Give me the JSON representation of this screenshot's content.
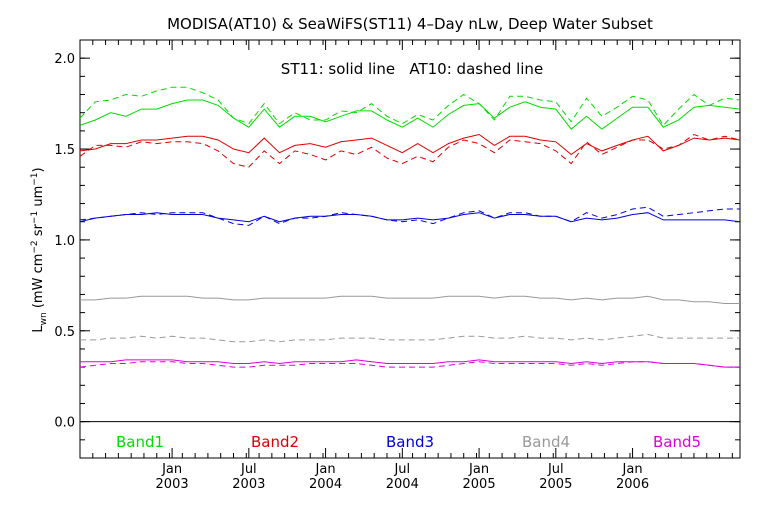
{
  "chart_data": {
    "type": "line",
    "title": "MODISA(AT10) & SeaWiFS(ST11) 4–Day nLw, Deep Water Subset",
    "annotation": "ST11: solid line   AT10: dashed line",
    "ylabel": {
      "main": "L",
      "sub1": "wn",
      "rest": " (mW cm",
      "sup1": "−2",
      "rest2": " sr",
      "sup2": "−1",
      "rest3": " um",
      "sup3": "−1",
      "end": ")"
    },
    "ylim": [
      -0.2,
      2.1
    ],
    "xlim": [
      2002.4,
      2006.7
    ],
    "yticks": [
      "0.0",
      "0.5",
      "1.0",
      "1.5",
      "2.0"
    ],
    "ytick_values": [
      0.0,
      0.5,
      1.0,
      1.5,
      2.0
    ],
    "xticks": [
      {
        "month": "Jan",
        "year": "2003",
        "value": 2003.0
      },
      {
        "month": "Jul",
        "year": "2003",
        "value": 2003.5
      },
      {
        "month": "Jan",
        "year": "2004",
        "value": 2004.0
      },
      {
        "month": "Jul",
        "year": "2004",
        "value": 2004.5
      },
      {
        "month": "Jan",
        "year": "2005",
        "value": 2005.0
      },
      {
        "month": "Jul",
        "year": "2005",
        "value": 2005.5
      },
      {
        "month": "Jan",
        "year": "2006",
        "value": 2006.0
      }
    ],
    "x": [
      2002.4,
      2002.5,
      2002.6,
      2002.7,
      2002.8,
      2002.9,
      2003.0,
      2003.1,
      2003.2,
      2003.3,
      2003.4,
      2003.5,
      2003.6,
      2003.7,
      2003.8,
      2003.9,
      2004.0,
      2004.1,
      2004.2,
      2004.3,
      2004.4,
      2004.5,
      2004.6,
      2004.7,
      2004.8,
      2004.9,
      2005.0,
      2005.1,
      2005.2,
      2005.3,
      2005.4,
      2005.5,
      2005.6,
      2005.7,
      2005.8,
      2005.9,
      2006.0,
      2006.1,
      2006.2,
      2006.3,
      2006.4,
      2006.5,
      2006.6,
      2006.7
    ],
    "series": [
      {
        "name": "Band1",
        "style": "solid",
        "color": "#00dd00",
        "values": [
          1.63,
          1.66,
          1.7,
          1.68,
          1.72,
          1.72,
          1.75,
          1.77,
          1.77,
          1.74,
          1.67,
          1.62,
          1.72,
          1.62,
          1.68,
          1.68,
          1.65,
          1.68,
          1.71,
          1.71,
          1.66,
          1.62,
          1.67,
          1.62,
          1.69,
          1.74,
          1.75,
          1.67,
          1.73,
          1.76,
          1.73,
          1.72,
          1.61,
          1.68,
          1.61,
          1.67,
          1.73,
          1.73,
          1.62,
          1.66,
          1.73,
          1.74,
          1.73,
          1.72
        ]
      },
      {
        "name": "Band1",
        "style": "dashed",
        "color": "#00dd00",
        "values": [
          1.67,
          1.76,
          1.77,
          1.8,
          1.79,
          1.82,
          1.84,
          1.84,
          1.81,
          1.77,
          1.67,
          1.64,
          1.75,
          1.64,
          1.7,
          1.66,
          1.66,
          1.71,
          1.7,
          1.75,
          1.68,
          1.64,
          1.69,
          1.66,
          1.74,
          1.8,
          1.75,
          1.66,
          1.79,
          1.79,
          1.77,
          1.76,
          1.65,
          1.78,
          1.68,
          1.73,
          1.79,
          1.77,
          1.63,
          1.72,
          1.8,
          1.74,
          1.78,
          1.77
        ]
      },
      {
        "name": "Band2",
        "style": "solid",
        "color": "#dd0000",
        "values": [
          1.49,
          1.5,
          1.53,
          1.53,
          1.55,
          1.55,
          1.56,
          1.57,
          1.57,
          1.55,
          1.5,
          1.48,
          1.56,
          1.48,
          1.52,
          1.53,
          1.51,
          1.54,
          1.55,
          1.56,
          1.52,
          1.48,
          1.53,
          1.48,
          1.53,
          1.56,
          1.58,
          1.52,
          1.57,
          1.57,
          1.55,
          1.54,
          1.47,
          1.53,
          1.49,
          1.52,
          1.55,
          1.57,
          1.49,
          1.52,
          1.56,
          1.55,
          1.56,
          1.55
        ]
      },
      {
        "name": "Band2",
        "style": "dashed",
        "color": "#dd0000",
        "values": [
          1.46,
          1.52,
          1.52,
          1.51,
          1.54,
          1.53,
          1.54,
          1.54,
          1.53,
          1.49,
          1.42,
          1.4,
          1.49,
          1.42,
          1.49,
          1.47,
          1.44,
          1.49,
          1.47,
          1.51,
          1.45,
          1.42,
          1.46,
          1.43,
          1.51,
          1.55,
          1.53,
          1.48,
          1.55,
          1.54,
          1.53,
          1.49,
          1.42,
          1.54,
          1.47,
          1.51,
          1.55,
          1.55,
          1.5,
          1.52,
          1.58,
          1.55,
          1.57,
          1.55
        ]
      },
      {
        "name": "Band3",
        "style": "solid",
        "color": "#0000dd",
        "values": [
          1.1,
          1.12,
          1.13,
          1.14,
          1.14,
          1.15,
          1.14,
          1.14,
          1.14,
          1.12,
          1.11,
          1.1,
          1.13,
          1.1,
          1.12,
          1.13,
          1.13,
          1.14,
          1.14,
          1.13,
          1.11,
          1.11,
          1.12,
          1.11,
          1.12,
          1.14,
          1.15,
          1.12,
          1.14,
          1.14,
          1.13,
          1.13,
          1.1,
          1.12,
          1.11,
          1.12,
          1.14,
          1.15,
          1.11,
          1.11,
          1.11,
          1.11,
          1.11,
          1.1
        ]
      },
      {
        "name": "Band3",
        "style": "dashed",
        "color": "#0000dd",
        "values": [
          1.11,
          1.12,
          1.13,
          1.14,
          1.15,
          1.14,
          1.15,
          1.15,
          1.15,
          1.12,
          1.09,
          1.08,
          1.13,
          1.09,
          1.12,
          1.12,
          1.13,
          1.15,
          1.14,
          1.13,
          1.11,
          1.1,
          1.11,
          1.09,
          1.12,
          1.15,
          1.16,
          1.12,
          1.15,
          1.15,
          1.13,
          1.13,
          1.1,
          1.15,
          1.12,
          1.14,
          1.17,
          1.18,
          1.13,
          1.14,
          1.15,
          1.16,
          1.17,
          1.17
        ]
      },
      {
        "name": "Band4",
        "style": "solid",
        "color": "#999999",
        "values": [
          0.67,
          0.67,
          0.68,
          0.68,
          0.69,
          0.69,
          0.69,
          0.69,
          0.68,
          0.68,
          0.67,
          0.67,
          0.68,
          0.68,
          0.68,
          0.68,
          0.68,
          0.69,
          0.69,
          0.69,
          0.68,
          0.68,
          0.68,
          0.68,
          0.69,
          0.69,
          0.69,
          0.68,
          0.69,
          0.69,
          0.68,
          0.68,
          0.67,
          0.68,
          0.67,
          0.68,
          0.68,
          0.69,
          0.67,
          0.67,
          0.66,
          0.66,
          0.65,
          0.65
        ]
      },
      {
        "name": "Band4",
        "style": "dashed",
        "color": "#999999",
        "values": [
          0.45,
          0.45,
          0.46,
          0.46,
          0.47,
          0.46,
          0.47,
          0.46,
          0.46,
          0.45,
          0.44,
          0.44,
          0.45,
          0.44,
          0.45,
          0.45,
          0.45,
          0.46,
          0.46,
          0.46,
          0.45,
          0.45,
          0.45,
          0.45,
          0.46,
          0.47,
          0.47,
          0.46,
          0.46,
          0.47,
          0.46,
          0.46,
          0.45,
          0.46,
          0.45,
          0.46,
          0.47,
          0.48,
          0.46,
          0.46,
          0.46,
          0.46,
          0.46,
          0.46
        ]
      },
      {
        "name": "Band5",
        "style": "solid",
        "color": "#dd00dd",
        "values": [
          0.33,
          0.33,
          0.33,
          0.34,
          0.34,
          0.34,
          0.34,
          0.33,
          0.33,
          0.33,
          0.32,
          0.32,
          0.33,
          0.32,
          0.33,
          0.33,
          0.33,
          0.33,
          0.34,
          0.33,
          0.32,
          0.32,
          0.32,
          0.32,
          0.33,
          0.33,
          0.34,
          0.33,
          0.33,
          0.33,
          0.33,
          0.33,
          0.32,
          0.33,
          0.32,
          0.33,
          0.33,
          0.33,
          0.32,
          0.32,
          0.32,
          0.31,
          0.3,
          0.3
        ]
      },
      {
        "name": "Band5",
        "style": "dashed",
        "color": "#dd00dd",
        "values": [
          0.3,
          0.31,
          0.32,
          0.32,
          0.33,
          0.33,
          0.33,
          0.32,
          0.32,
          0.31,
          0.3,
          0.3,
          0.31,
          0.31,
          0.31,
          0.32,
          0.32,
          0.32,
          0.32,
          0.31,
          0.3,
          0.3,
          0.3,
          0.3,
          0.31,
          0.32,
          0.33,
          0.32,
          0.32,
          0.32,
          0.32,
          0.32,
          0.31,
          0.32,
          0.31,
          0.32,
          0.33,
          0.33,
          0.32,
          0.32,
          0.32,
          0.31,
          0.3,
          0.3
        ]
      }
    ],
    "legend": [
      {
        "label": "Band1",
        "color": "#00dd00"
      },
      {
        "label": "Band2",
        "color": "#dd0000"
      },
      {
        "label": "Band3",
        "color": "#0000dd"
      },
      {
        "label": "Band4",
        "color": "#999999"
      },
      {
        "label": "Band5",
        "color": "#dd00dd"
      }
    ],
    "legend_position": "bottom",
    "grid": false,
    "reference_line": 0.0
  }
}
